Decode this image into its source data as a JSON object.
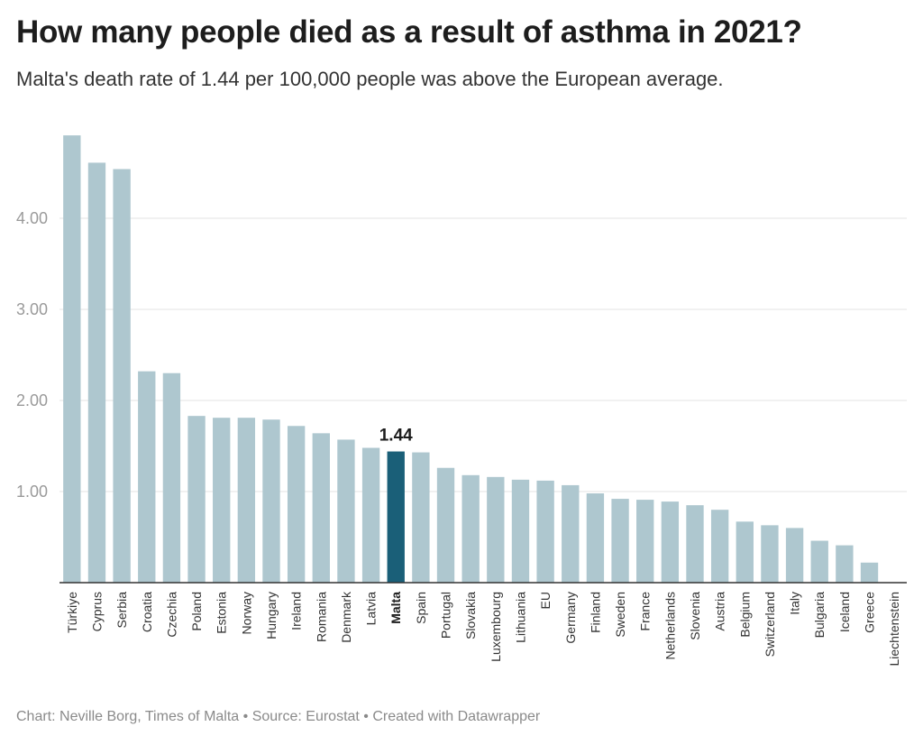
{
  "header": {
    "title": "How many people died as a result of asthma in 2021?",
    "subtitle": "Malta's death rate of 1.44 per 100,000 people was above the European average."
  },
  "footer": {
    "credit": "Chart: Neville Borg, Times of Malta • Source: Eurostat • Created with Datawrapper"
  },
  "colors": {
    "bar": "#aec7cf",
    "highlight": "#1a5f78",
    "grid": "#e3e3e3",
    "axis": "#333333"
  },
  "chart_data": {
    "type": "bar",
    "title": "How many people died as a result of asthma in 2021?",
    "subtitle": "Malta's death rate of 1.44 per 100,000 people was above the European average.",
    "xlabel": "",
    "ylabel": "",
    "ylim": [
      0,
      5
    ],
    "yticks": [
      1,
      2,
      3,
      4
    ],
    "ytick_labels": [
      "1.00",
      "2.00",
      "3.00",
      "4.00"
    ],
    "grid": true,
    "highlight": "Malta",
    "highlight_label": "1.44",
    "categories": [
      "Türkiye",
      "Cyprus",
      "Serbia",
      "Croatia",
      "Czechia",
      "Poland",
      "Estonia",
      "Norway",
      "Hungary",
      "Ireland",
      "Romania",
      "Denmark",
      "Latvia",
      "Malta",
      "Spain",
      "Portugal",
      "Slovakia",
      "Luxembourg",
      "Lithuania",
      "EU",
      "Germany",
      "Finland",
      "Sweden",
      "France",
      "Netherlands",
      "Slovenia",
      "Austria",
      "Belgium",
      "Switzerland",
      "Italy",
      "Bulgaria",
      "Iceland",
      "Greece",
      "Liechtenstein"
    ],
    "values": [
      4.91,
      4.61,
      4.54,
      2.32,
      2.3,
      1.83,
      1.81,
      1.81,
      1.79,
      1.72,
      1.64,
      1.57,
      1.48,
      1.44,
      1.43,
      1.26,
      1.18,
      1.16,
      1.13,
      1.12,
      1.07,
      0.98,
      0.92,
      0.91,
      0.89,
      0.85,
      0.8,
      0.67,
      0.63,
      0.6,
      0.46,
      0.41,
      0.22,
      0.0
    ]
  }
}
